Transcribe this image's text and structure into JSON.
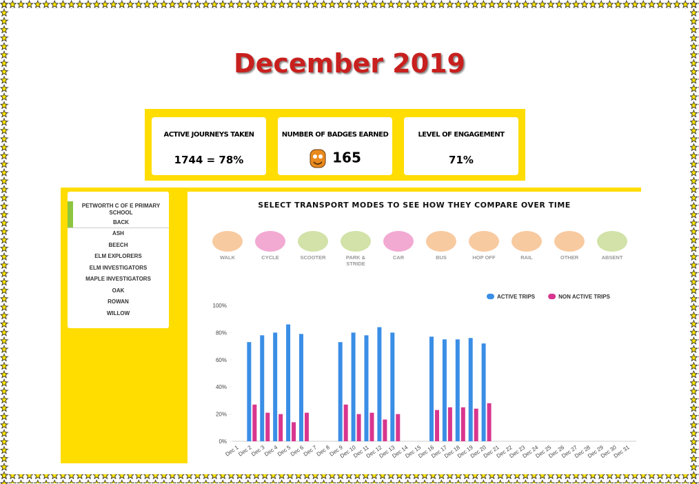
{
  "header": {
    "title": "December 2019"
  },
  "stats": [
    {
      "label": "ACTIVE JOURNEYS TAKEN",
      "value": "1744 = 78%"
    },
    {
      "label": "NUMBER OF BADGES EARNED",
      "value": "165"
    },
    {
      "label": "LEVEL OF ENGAGEMENT",
      "value": "71%"
    }
  ],
  "sidebar": {
    "school": "PETWORTH C OF E PRIMARY SCHOOL",
    "back": "BACK",
    "classes": [
      "ASH",
      "BEECH",
      "ELM EXPLORERS",
      "ELM INVESTIGATORS",
      "MAPLE INVESTIGATORS",
      "OAK",
      "ROWAN",
      "WILLOW"
    ]
  },
  "modes_heading": "SELECT TRANSPORT MODES TO SEE HOW THEY COMPARE OVER TIME",
  "modes": [
    "WALK",
    "CYCLE",
    "SCOOTER",
    "PARK & STRIDE",
    "CAR",
    "BUS",
    "HOP OFF",
    "RAIL",
    "OTHER",
    "ABSENT"
  ],
  "chart_data": {
    "type": "bar",
    "categories": [
      "Dec 1",
      "Dec 2",
      "Dec 3",
      "Dec 4",
      "Dec 5",
      "Dec 6",
      "Dec 7",
      "Dec 8",
      "Dec 9",
      "Dec 10",
      "Dec 11",
      "Dec 12",
      "Dec 13",
      "Dec 14",
      "Dec 15",
      "Dec 16",
      "Dec 17",
      "Dec 18",
      "Dec 19",
      "Dec 20",
      "Dec 21",
      "Dec 22",
      "Dec 23",
      "Dec 24",
      "Dec 25",
      "Dec 26",
      "Dec 27",
      "Dec 28",
      "Dec 29",
      "Dec 30",
      "Dec 31"
    ],
    "series": [
      {
        "name": "ACTIVE TRIPS",
        "color": "#3a8ee6",
        "values": [
          null,
          73,
          78,
          80,
          86,
          79,
          null,
          null,
          73,
          80,
          78,
          84,
          80,
          null,
          null,
          77,
          75,
          75,
          76,
          72,
          null,
          null,
          null,
          null,
          null,
          null,
          null,
          null,
          null,
          null,
          null
        ]
      },
      {
        "name": "NON ACTIVE TRIPS",
        "color": "#d8368e",
        "values": [
          null,
          27,
          21,
          20,
          14,
          21,
          null,
          null,
          27,
          20,
          21,
          16,
          20,
          null,
          null,
          23,
          25,
          25,
          24,
          28,
          null,
          null,
          null,
          null,
          null,
          null,
          null,
          null,
          null,
          null,
          null
        ]
      }
    ],
    "ylim": [
      0,
      100
    ],
    "yticks": [
      {
        "value": 0,
        "label": "0%"
      },
      {
        "value": 20,
        "label": "20%"
      },
      {
        "value": 40,
        "label": "40%"
      },
      {
        "value": 60,
        "label": "60%"
      },
      {
        "value": 80,
        "label": "80%"
      },
      {
        "value": 100,
        "label": "100%"
      }
    ],
    "legend": "top-right"
  }
}
